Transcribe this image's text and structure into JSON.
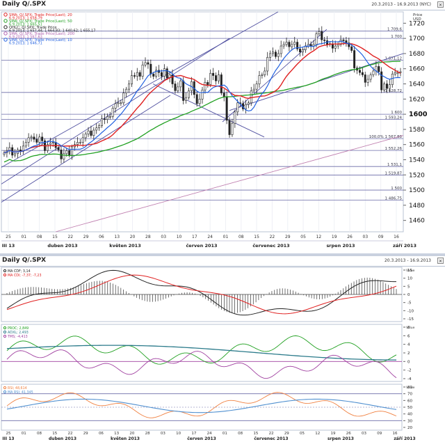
{
  "panels": [
    {
      "id": "main",
      "title": "Daily Q/.SPX",
      "date_range": "20.3.2013 - 16.9.2013 (NYC)"
    },
    {
      "id": "ind",
      "title": "Daily Q/.SPX",
      "date_range": "20.3.2013 - 16.9.2013"
    }
  ],
  "chart_data": [
    {
      "type": "candlestick",
      "ylim": [
        1445,
        1735
      ],
      "y_unit_label": [
        "Price",
        "USD"
      ],
      "yticks": [
        1460,
        1480,
        1500,
        1520,
        1540,
        1560,
        1580,
        1600,
        1620,
        1640,
        1660,
        1680,
        1700,
        1720
      ],
      "x_day_ticks": [
        "25",
        "01",
        "08",
        "15",
        "22",
        "29",
        "06",
        "13",
        "20",
        "28",
        "03",
        "10",
        "17",
        "24",
        "01",
        "08",
        "15",
        "22",
        "29",
        "05",
        "12",
        "19",
        "26",
        "03",
        "09",
        "16"
      ],
      "x_months": [
        "III 13",
        "duben 2013",
        "květen 2013",
        "červen 2013",
        "červenec 2013",
        "srpen 2013",
        "září 2013"
      ],
      "legend": [
        {
          "label": "SMA; Q/.SPX; Trade Price(Last); 20",
          "value": "6.9.2013; 1 658,79",
          "color": "#e02020"
        },
        {
          "label": "SMA; Q/.SPX; Trade Price(Last); 50",
          "value": "6.9.2013; 1 665,51",
          "color": "#20a020"
        },
        {
          "label": "OHLC; Q/.SPX; Trade Price",
          "value": "6.9.2013; 1 657,44; 1 664,83; 1 640,62; 1 655,17",
          "color": "#222222"
        },
        {
          "label": "SMA; Q/.SPX; Trade Price(Last); 200",
          "value": "6.9.2013; 1 567,63",
          "color": "#b060b0"
        },
        {
          "label": "SMA; Q/.SPX; Trade Price(Last); 10",
          "value": "6.9.2013; 1 646,71",
          "color": "#2060e0"
        }
      ],
      "level_lines": [
        {
          "value": 1709.6,
          "label": "1 709,6"
        },
        {
          "value": 1700,
          "label": "1 700"
        },
        {
          "value": 1671.12,
          "label": "1 671,12"
        },
        {
          "value": 1628.72,
          "label": "1 628,72"
        },
        {
          "value": 1600,
          "label": "1 600"
        },
        {
          "value": 1593.24,
          "label": "1 593,24"
        },
        {
          "value": 1567.88,
          "label": "100,0% 1 567,88"
        },
        {
          "value": 1552.26,
          "label": "1 552,26"
        },
        {
          "value": 1531.1,
          "label": "1 531,1"
        },
        {
          "value": 1519.87,
          "label": "1 519,87"
        },
        {
          "value": 1500,
          "label": "1 500"
        },
        {
          "value": 1486.75,
          "label": "1 486,75"
        }
      ],
      "ohlc_close_series": [
        1549,
        1552,
        1556,
        1546,
        1548,
        1553,
        1551,
        1558,
        1563,
        1569,
        1570,
        1567,
        1563,
        1570,
        1565,
        1552,
        1560,
        1562,
        1563,
        1556,
        1553,
        1541,
        1548,
        1552,
        1546,
        1557,
        1560,
        1563,
        1563,
        1569,
        1574,
        1578,
        1572,
        1579,
        1582,
        1585,
        1594,
        1593,
        1597,
        1597,
        1608,
        1614,
        1615,
        1615,
        1628,
        1633,
        1640,
        1651,
        1650,
        1655,
        1650,
        1665,
        1668,
        1666,
        1653,
        1650,
        1658,
        1655,
        1650,
        1660,
        1648,
        1652,
        1640,
        1631,
        1636,
        1644,
        1618,
        1622,
        1631,
        1643,
        1626,
        1614,
        1620,
        1632,
        1642,
        1639,
        1654,
        1651,
        1644,
        1652,
        1628,
        1623,
        1592,
        1573,
        1588,
        1603,
        1615,
        1614,
        1607,
        1613,
        1615,
        1631,
        1633,
        1640,
        1651,
        1652,
        1657,
        1675,
        1680,
        1682,
        1676,
        1680,
        1690,
        1692,
        1695,
        1689,
        1692,
        1695,
        1686,
        1682,
        1685,
        1690,
        1692,
        1690,
        1692,
        1706,
        1709,
        1698,
        1697,
        1692,
        1693,
        1687,
        1690,
        1692,
        1698,
        1697,
        1694,
        1689,
        1684,
        1661,
        1658,
        1655,
        1652,
        1642,
        1646,
        1652,
        1657,
        1663,
        1656,
        1632,
        1640,
        1634,
        1639,
        1653,
        1655,
        1655,
        1656
      ]
    },
    {
      "type": "line",
      "legend": [
        {
          "label": "MA CDF; 3,14",
          "color": "#222222"
        },
        {
          "label": "MA CDI; -7,37; -7,23",
          "color": "#e02020"
        }
      ],
      "yticks": [
        15,
        10,
        5,
        0,
        -5,
        -10,
        -15
      ],
      "y_unit_label": [
        "Value",
        "USD"
      ]
    },
    {
      "type": "line",
      "legend": [
        {
          "label": "PROC; 2,849",
          "color": "#20a020"
        },
        {
          "label": "ADXL; 2,493",
          "color": "#2a7a8a"
        },
        {
          "label": "TMS; -4,413",
          "color": "#a040a0"
        }
      ],
      "yticks": [
        8,
        6,
        4,
        2,
        0,
        -2,
        -4
      ],
      "y_unit_label": [
        "Value",
        "USD"
      ]
    },
    {
      "type": "line",
      "legend": [
        {
          "label": "RSI; 48,614",
          "color": "#f08040"
        },
        {
          "label": "MA RSI; 41,345",
          "color": "#5090d0"
        }
      ],
      "yticks": [
        80,
        70,
        60,
        50,
        40,
        30,
        20
      ],
      "y_unit_label": [
        "Value",
        "USD"
      ]
    }
  ]
}
